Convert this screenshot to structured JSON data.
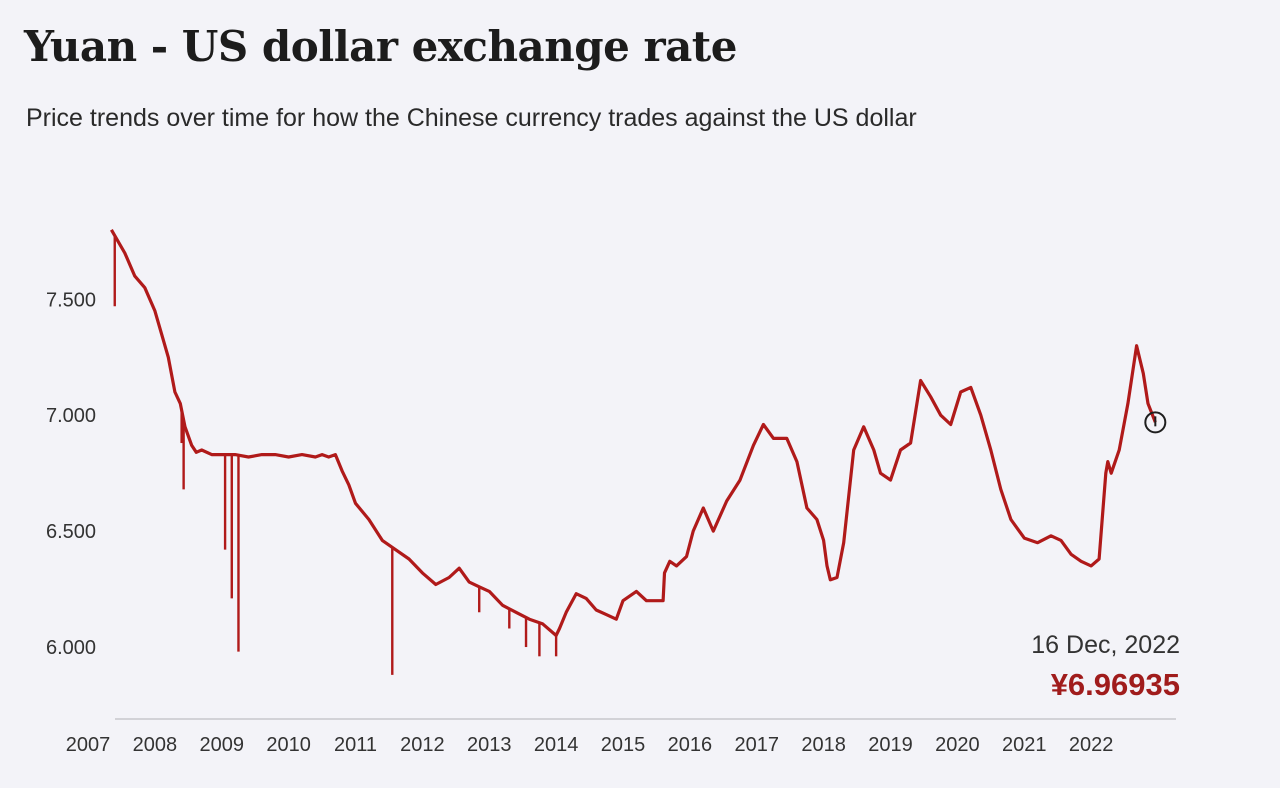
{
  "header": {
    "title": "Yuan - US dollar exchange rate",
    "subtitle": "Price trends over time for how the Chinese currency trades against the US dollar"
  },
  "chart_data": {
    "type": "line",
    "title": "Yuan - US dollar exchange rate",
    "subtitle": "Price trends over time for how the Chinese currency trades against the US dollar",
    "xlabel": "",
    "ylabel": "",
    "x_ticks": [
      "2007",
      "2008",
      "2009",
      "2010",
      "2011",
      "2012",
      "2013",
      "2014",
      "2015",
      "2016",
      "2017",
      "2018",
      "2019",
      "2020",
      "2021",
      "2022"
    ],
    "y_ticks": [
      "6.000",
      "6.500",
      "7.000",
      "7.500"
    ],
    "y_tick_values": [
      6.0,
      6.5,
      7.0,
      7.5
    ],
    "xlim": [
      2007.0,
      2023.0
    ],
    "ylim": [
      5.75,
      7.95
    ],
    "grid": false,
    "color": "#b01a1a",
    "series": [
      {
        "x": [
          2007.35,
          2007.45,
          2007.55,
          2007.7,
          2007.85,
          2008.0,
          2008.1,
          2008.2,
          2008.3,
          2008.38,
          2008.45,
          2008.55,
          2008.62,
          2008.7,
          2008.85,
          2009.0,
          2009.2,
          2009.4,
          2009.6,
          2009.8,
          2010.0,
          2010.2,
          2010.4,
          2010.5,
          2010.6,
          2010.7,
          2010.8,
          2010.9,
          2011.0,
          2011.2,
          2011.4,
          2011.6,
          2011.8,
          2012.0,
          2012.2,
          2012.4,
          2012.55,
          2012.7,
          2012.85,
          2013.0,
          2013.2,
          2013.4,
          2013.6,
          2013.8,
          2014.0,
          2014.05,
          2014.15,
          2014.3,
          2014.45,
          2014.6,
          2014.75,
          2014.9,
          2015.0,
          2015.2,
          2015.35,
          2015.5,
          2015.6,
          2015.62,
          2015.7,
          2015.8,
          2015.95,
          2016.05,
          2016.2,
          2016.35,
          2016.55,
          2016.75,
          2016.95,
          2017.1,
          2017.25,
          2017.45,
          2017.6,
          2017.75,
          2017.9,
          2018.0,
          2018.05,
          2018.1,
          2018.2,
          2018.3,
          2018.45,
          2018.6,
          2018.75,
          2018.85,
          2019.0,
          2019.15,
          2019.3,
          2019.45,
          2019.6,
          2019.75,
          2019.9,
          2020.05,
          2020.2,
          2020.35,
          2020.5,
          2020.65,
          2020.8,
          2021.0,
          2021.2,
          2021.4,
          2021.55,
          2021.7,
          2021.85,
          2022.0,
          2022.12,
          2022.22,
          2022.25,
          2022.3,
          2022.42,
          2022.55,
          2022.68,
          2022.78,
          2022.85,
          2022.96
        ],
        "y": [
          7.8,
          7.75,
          7.7,
          7.6,
          7.55,
          7.45,
          7.35,
          7.25,
          7.1,
          7.05,
          6.95,
          6.87,
          6.84,
          6.85,
          6.83,
          6.83,
          6.83,
          6.82,
          6.83,
          6.83,
          6.82,
          6.83,
          6.82,
          6.83,
          6.82,
          6.83,
          6.76,
          6.7,
          6.62,
          6.55,
          6.46,
          6.42,
          6.38,
          6.32,
          6.27,
          6.3,
          6.34,
          6.28,
          6.26,
          6.24,
          6.18,
          6.15,
          6.12,
          6.1,
          6.05,
          6.08,
          6.15,
          6.23,
          6.21,
          6.16,
          6.14,
          6.12,
          6.2,
          6.24,
          6.2,
          6.2,
          6.2,
          6.32,
          6.37,
          6.35,
          6.39,
          6.5,
          6.6,
          6.5,
          6.63,
          6.72,
          6.87,
          6.96,
          6.9,
          6.9,
          6.8,
          6.6,
          6.55,
          6.46,
          6.35,
          6.29,
          6.3,
          6.45,
          6.85,
          6.95,
          6.85,
          6.75,
          6.72,
          6.85,
          6.88,
          7.15,
          7.08,
          7.0,
          6.96,
          7.1,
          7.12,
          7.0,
          6.85,
          6.68,
          6.55,
          6.47,
          6.45,
          6.48,
          6.46,
          6.4,
          6.37,
          6.35,
          6.38,
          6.75,
          6.8,
          6.75,
          6.85,
          7.05,
          7.3,
          7.18,
          7.05,
          6.97
        ],
        "dips": [
          [
            2007.4,
            7.47
          ],
          [
            2008.4,
            6.88
          ],
          [
            2008.43,
            6.68
          ],
          [
            2009.05,
            6.42
          ],
          [
            2009.15,
            6.21
          ],
          [
            2009.25,
            5.98
          ],
          [
            2011.55,
            5.88
          ],
          [
            2012.85,
            6.15
          ],
          [
            2013.3,
            6.08
          ],
          [
            2013.55,
            6.0
          ],
          [
            2013.75,
            5.96
          ],
          [
            2014.0,
            5.96
          ]
        ]
      }
    ],
    "annotation": {
      "date": "16 Dec, 2022",
      "value_label": "¥6.96935",
      "x": 2022.96,
      "y": 6.96935
    }
  }
}
